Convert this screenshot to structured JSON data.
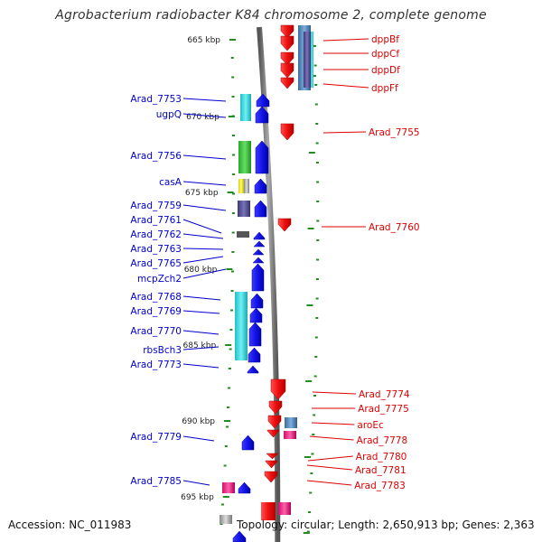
{
  "title": "Agrobacterium radiobacter K84 chromosome 2, complete genome",
  "footer": {
    "accession": "Accession: NC_011983",
    "summary": "Topology: circular; Length: 2,650,913 bp; Genes: 2,363"
  },
  "kbp_ticks": [
    "665 kbp",
    "670 kbp",
    "675 kbp",
    "680 kbp",
    "685 kbp",
    "690 kbp",
    "695 kbp"
  ],
  "forward_labels": [
    "Arad_7753",
    "ugpQ",
    "Arad_7756",
    "casA",
    "Arad_7759",
    "Arad_7761",
    "Arad_7762",
    "Arad_7763",
    "Arad_7765",
    "mcpZch2",
    "Arad_7768",
    "Arad_7769",
    "Arad_7770",
    "rbsBch3",
    "Arad_7773",
    "Arad_7779",
    "Arad_7785"
  ],
  "reverse_labels": [
    "dppBf",
    "dppCf",
    "dppDf",
    "dppFf",
    "Arad_7755",
    "Arad_7760",
    "Arad_7774",
    "Arad_7775",
    "aroEc",
    "Arad_7778",
    "Arad_7780",
    "Arad_7781",
    "Arad_7783"
  ],
  "colors": {
    "forward": "#0000cc",
    "reverse": "#dd0000",
    "backbone": "#777777",
    "tick": "#228b22",
    "cyan": "#2ad0d8",
    "green": "#33c733",
    "slate": "#54508e",
    "steel": "#4f86b8",
    "magenta": "#ee2288",
    "yellow": "#e8e020"
  }
}
